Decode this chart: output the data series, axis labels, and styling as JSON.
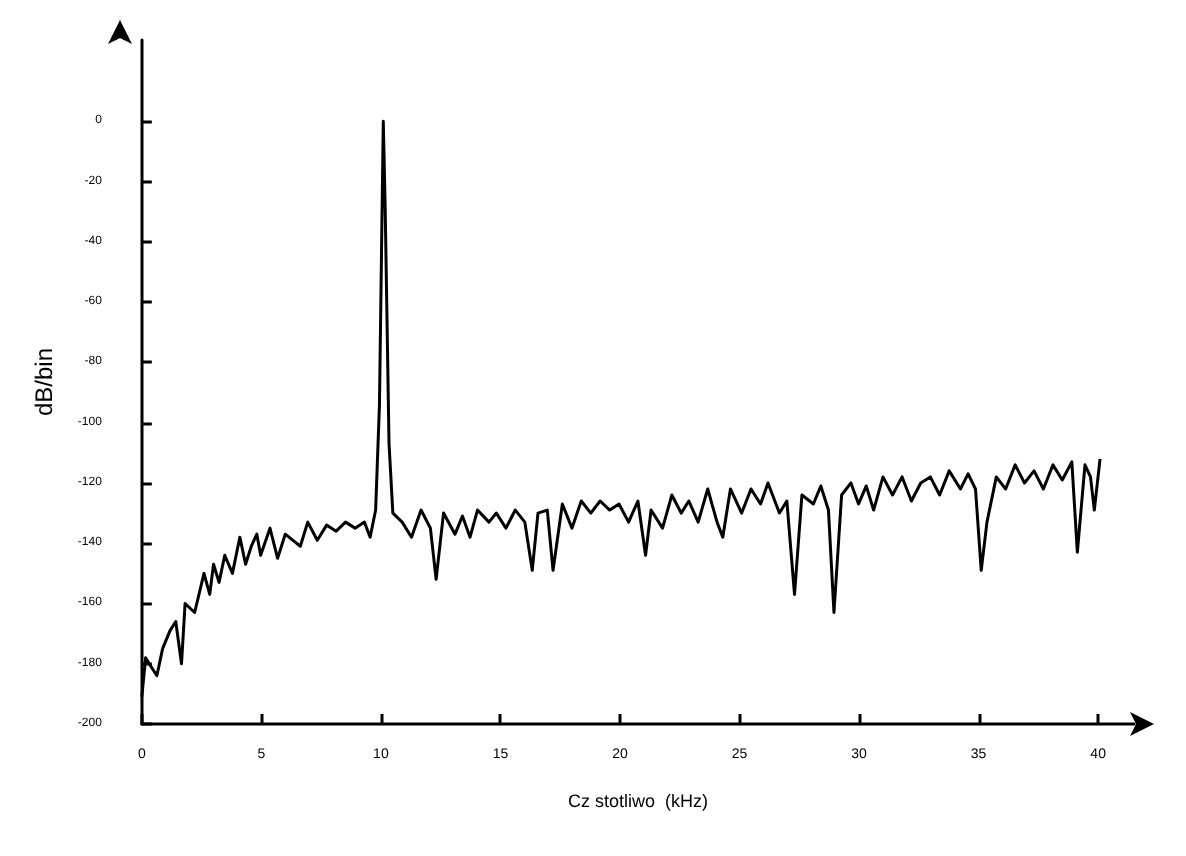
{
  "chart_data": {
    "type": "line",
    "xlabel": "Cz stotliwo  (kHz)",
    "ylabel": "dB/bin",
    "xlim": [
      0,
      41.5
    ],
    "ylim": [
      -200,
      27
    ],
    "xticks": [
      0,
      5,
      10,
      15,
      20,
      25,
      30,
      35,
      40
    ],
    "yticks": [
      -200,
      -180,
      -160,
      -140,
      -120,
      -100,
      -80,
      -60,
      -40,
      -20,
      0
    ],
    "grid": false,
    "marker": "none",
    "line_style": "solid",
    "series": [
      {
        "color": "#000000",
        "x": [
          0,
          0.16,
          0.39,
          0.63,
          0.87,
          1.18,
          1.42,
          1.66,
          1.81,
          2.21,
          2.6,
          2.84,
          3.0,
          3.23,
          3.47,
          3.79,
          4.1,
          4.34,
          4.58,
          4.81,
          4.97,
          5.36,
          5.68,
          6.0,
          6.31,
          6.63,
          6.94,
          7.34,
          7.73,
          8.13,
          8.52,
          8.92,
          9.31,
          9.55,
          9.78,
          9.94,
          10.1,
          10.18,
          10.34,
          10.5,
          10.89,
          11.28,
          11.68,
          12.07,
          12.31,
          12.62,
          13.1,
          13.41,
          13.73,
          14.04,
          14.52,
          14.83,
          15.23,
          15.62,
          16.02,
          16.33,
          16.57,
          16.96,
          17.2,
          17.59,
          17.99,
          18.38,
          18.78,
          19.17,
          19.57,
          19.96,
          20.36,
          20.75,
          21.07,
          21.3,
          21.78,
          22.17,
          22.56,
          22.88,
          23.27,
          23.67,
          24.06,
          24.3,
          24.62,
          25.09,
          25.48,
          25.88,
          26.19,
          26.67,
          26.98,
          27.3,
          27.61,
          28.09,
          28.4,
          28.72,
          28.95,
          29.27,
          29.66,
          29.98,
          30.3,
          30.61,
          31.0,
          31.4,
          31.8,
          32.19,
          32.58,
          32.98,
          33.37,
          33.77,
          34.24,
          34.56,
          34.87,
          35.11,
          35.35,
          35.74,
          36.13,
          36.53,
          36.92,
          37.32,
          37.71,
          38.11,
          38.5,
          38.9,
          39.13,
          39.45,
          39.68,
          39.84,
          40.08
        ],
        "values": [
          -191,
          -178,
          -181,
          -184,
          -175,
          -169,
          -166,
          -180,
          -160,
          -163,
          -150,
          -157,
          -147,
          -153,
          -144,
          -150,
          -138,
          -147,
          -141,
          -137,
          -144,
          -135,
          -145,
          -137,
          -139,
          -141,
          -133,
          -139,
          -134,
          -136,
          -133,
          -135,
          -133,
          -138,
          -129,
          -94,
          0,
          -29,
          -107,
          -130,
          -133,
          -138,
          -129,
          -135,
          -152,
          -130,
          -137,
          -131,
          -138,
          -129,
          -133,
          -130,
          -135,
          -129,
          -133,
          -149,
          -130,
          -129,
          -149,
          -127,
          -135,
          -126,
          -130,
          -126,
          -129,
          -127,
          -133,
          -126,
          -144,
          -129,
          -135,
          -124,
          -130,
          -126,
          -133,
          -122,
          -133,
          -138,
          -122,
          -130,
          -122,
          -127,
          -120,
          -130,
          -126,
          -157,
          -124,
          -127,
          -121,
          -129,
          -163,
          -124,
          -120,
          -127,
          -121,
          -129,
          -118,
          -124,
          -118,
          -126,
          -120,
          -118,
          -124,
          -116,
          -122,
          -117,
          -122,
          -149,
          -133,
          -118,
          -122,
          -114,
          -120,
          -116,
          -122,
          -114,
          -119,
          -113,
          -143,
          -114,
          -118,
          -129,
          -112
        ]
      }
    ]
  }
}
